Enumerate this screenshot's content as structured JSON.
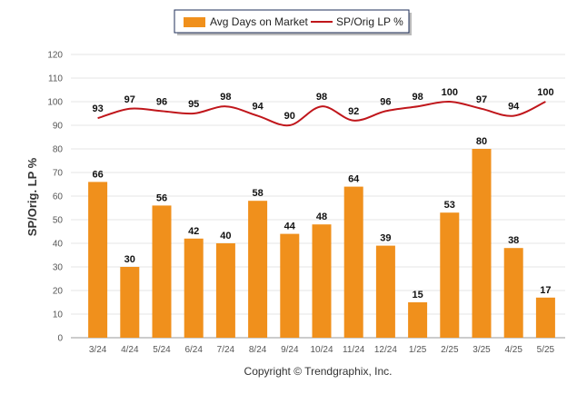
{
  "chart_data": {
    "type": "bar",
    "categories": [
      "3/24",
      "4/24",
      "5/24",
      "6/24",
      "7/24",
      "8/24",
      "9/24",
      "10/24",
      "11/24",
      "12/24",
      "1/25",
      "2/25",
      "3/25",
      "4/25",
      "5/25"
    ],
    "series": [
      {
        "name": "Avg Days on Market",
        "type": "bar",
        "color": "#f0901c",
        "values": [
          66,
          30,
          56,
          42,
          40,
          58,
          44,
          48,
          64,
          39,
          15,
          53,
          80,
          38,
          17
        ]
      },
      {
        "name": "SP/Orig LP %",
        "type": "line",
        "color": "#c0161b",
        "values": [
          93,
          97,
          96,
          95,
          98,
          94,
          90,
          98,
          92,
          96,
          98,
          100,
          97,
          94,
          100
        ]
      }
    ],
    "ylabel": "SP/Orig. LP %",
    "ylim": [
      0,
      120
    ],
    "yticks": [
      0,
      10,
      20,
      30,
      40,
      50,
      60,
      70,
      80,
      90,
      100,
      110,
      120
    ],
    "grid": true,
    "legend_position": "top"
  },
  "legend": {
    "bar_label": "Avg Days on Market",
    "line_label": "SP/Orig LP %"
  },
  "footer": {
    "copyright": "Copyright © Trendgraphix, Inc."
  }
}
